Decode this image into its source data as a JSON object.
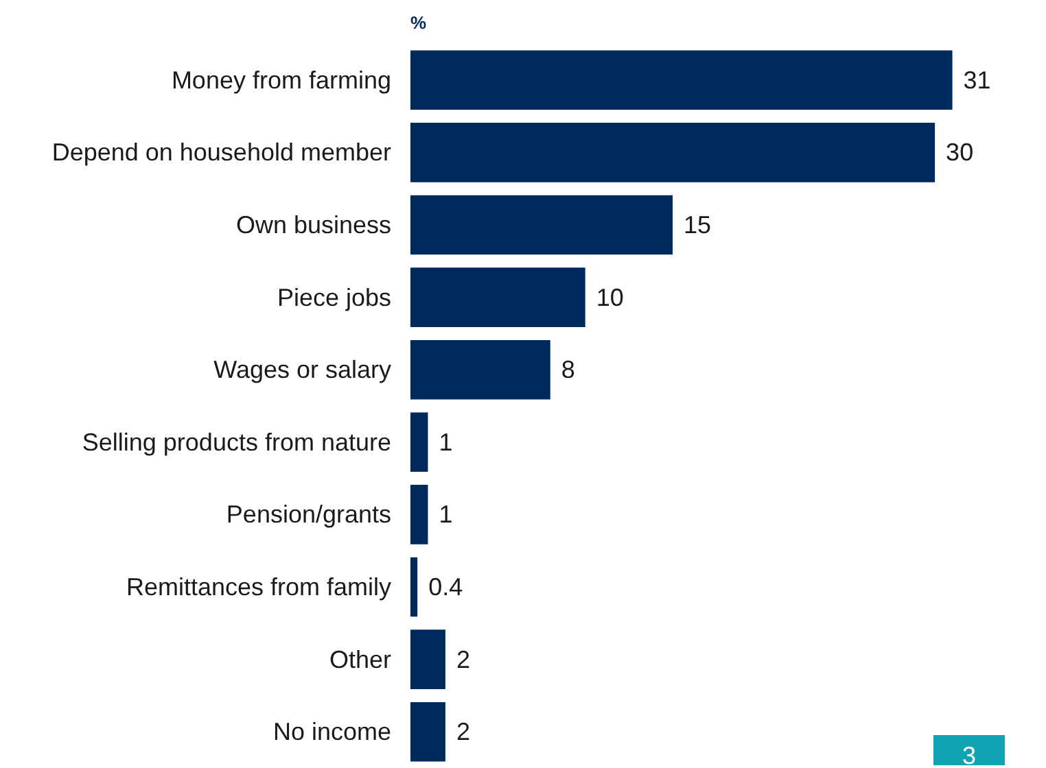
{
  "chart_data": {
    "type": "bar",
    "orientation": "horizontal",
    "xlabel": "%",
    "categories": [
      "Money from farming",
      "Depend on household member",
      "Own business",
      "Piece jobs",
      "Wages or salary",
      "Selling products from nature",
      "Pension/grants",
      "Remittances from family",
      "Other",
      "No income"
    ],
    "values": [
      31,
      30,
      15,
      10,
      8,
      1,
      1,
      0.4,
      2,
      2
    ],
    "color": "#002a5c",
    "data_labels": true,
    "annotations": [
      "3"
    ]
  }
}
